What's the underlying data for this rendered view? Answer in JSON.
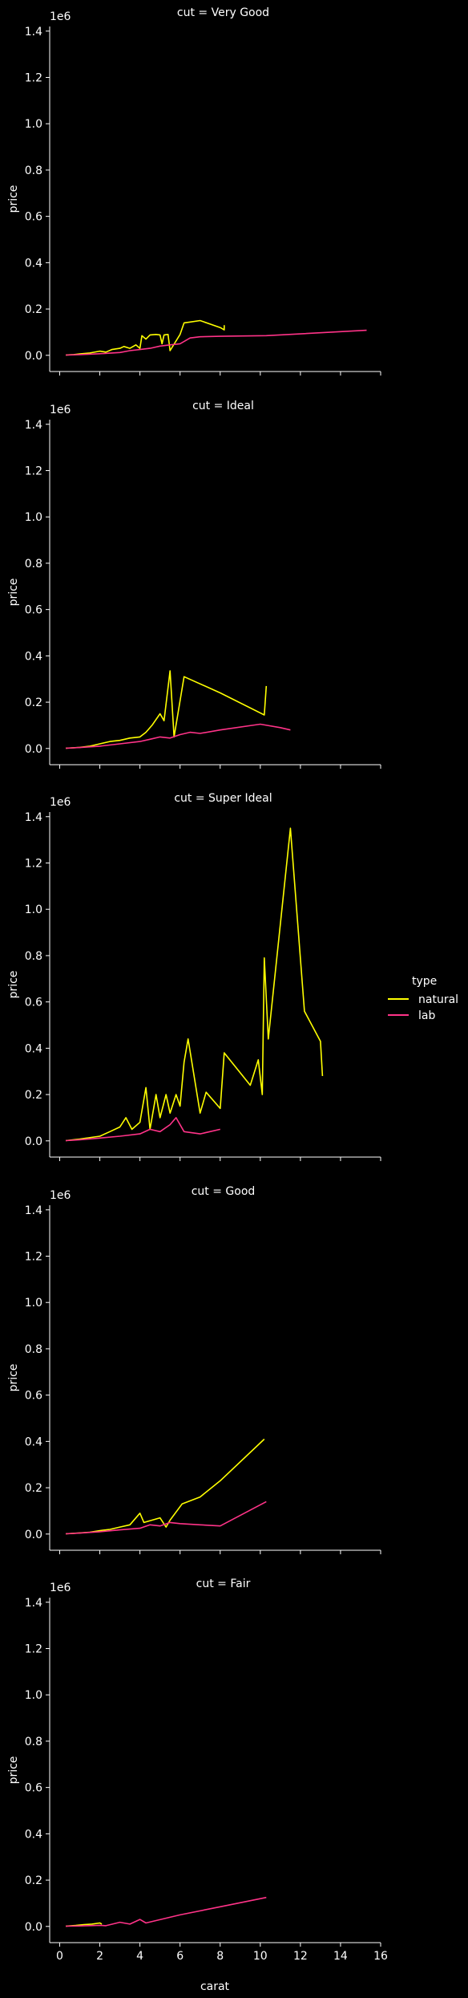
{
  "chart_data": {
    "type": "line",
    "facet_variable": "cut",
    "xlabel": "carat",
    "ylabel": "price",
    "y_offset_label": "1e6",
    "xlim": [
      -0.5,
      16
    ],
    "ylim": [
      -0.07,
      1.42
    ],
    "x_ticks": [
      0,
      2,
      4,
      6,
      8,
      10,
      12,
      14,
      16
    ],
    "y_ticks": [
      0.0,
      0.2,
      0.4,
      0.6,
      0.8,
      1.0,
      1.2,
      1.4
    ],
    "legend": {
      "title": "type",
      "placement": "right",
      "entries": [
        {
          "label": "natural",
          "color": "#ffff00"
        },
        {
          "label": "lab",
          "color": "#ff3388"
        }
      ]
    },
    "panels": [
      {
        "title": "cut = Very Good",
        "series": [
          {
            "name": "natural",
            "color": "#ffff00",
            "points": [
              [
                0.3,
                0.001
              ],
              [
                0.5,
                0.002
              ],
              [
                0.7,
                0.003
              ],
              [
                1.0,
                0.006
              ],
              [
                1.5,
                0.01
              ],
              [
                2.0,
                0.018
              ],
              [
                2.3,
                0.014
              ],
              [
                2.6,
                0.025
              ],
              [
                3.0,
                0.03
              ],
              [
                3.2,
                0.038
              ],
              [
                3.5,
                0.03
              ],
              [
                3.8,
                0.045
              ],
              [
                4.0,
                0.03
              ],
              [
                4.1,
                0.085
              ],
              [
                4.3,
                0.07
              ],
              [
                4.5,
                0.088
              ],
              [
                4.8,
                0.09
              ],
              [
                5.0,
                0.088
              ],
              [
                5.1,
                0.05
              ],
              [
                5.2,
                0.088
              ],
              [
                5.4,
                0.09
              ],
              [
                5.5,
                0.02
              ],
              [
                6.0,
                0.09
              ],
              [
                6.2,
                0.14
              ],
              [
                7.0,
                0.15
              ],
              [
                8.0,
                0.12
              ],
              [
                8.2,
                0.11
              ],
              [
                8.2,
                0.13
              ]
            ]
          },
          {
            "name": "lab",
            "color": "#ff3388",
            "points": [
              [
                0.3,
                0.001
              ],
              [
                1.0,
                0.003
              ],
              [
                2.0,
                0.007
              ],
              [
                3.0,
                0.012
              ],
              [
                3.5,
                0.02
              ],
              [
                4.0,
                0.025
              ],
              [
                4.5,
                0.03
              ],
              [
                5.0,
                0.04
              ],
              [
                5.5,
                0.045
              ],
              [
                6.0,
                0.05
              ],
              [
                6.5,
                0.075
              ],
              [
                7.0,
                0.08
              ],
              [
                8.0,
                0.082
              ],
              [
                10.3,
                0.085
              ],
              [
                15.3,
                0.108
              ]
            ]
          }
        ]
      },
      {
        "title": "cut = Ideal",
        "series": [
          {
            "name": "natural",
            "color": "#ffff00",
            "points": [
              [
                0.3,
                0.001
              ],
              [
                1.0,
                0.005
              ],
              [
                1.5,
                0.01
              ],
              [
                2.0,
                0.02
              ],
              [
                2.5,
                0.03
              ],
              [
                3.0,
                0.035
              ],
              [
                3.5,
                0.045
              ],
              [
                4.0,
                0.05
              ],
              [
                4.3,
                0.07
              ],
              [
                4.6,
                0.1
              ],
              [
                5.0,
                0.15
              ],
              [
                5.2,
                0.12
              ],
              [
                5.5,
                0.335
              ],
              [
                5.7,
                0.05
              ],
              [
                6.2,
                0.31
              ],
              [
                8.0,
                0.24
              ],
              [
                10.2,
                0.145
              ],
              [
                10.3,
                0.27
              ]
            ]
          },
          {
            "name": "lab",
            "color": "#ff3388",
            "points": [
              [
                0.3,
                0.001
              ],
              [
                1.0,
                0.004
              ],
              [
                2.0,
                0.01
              ],
              [
                3.0,
                0.02
              ],
              [
                4.0,
                0.03
              ],
              [
                4.5,
                0.04
              ],
              [
                5.0,
                0.05
              ],
              [
                5.5,
                0.045
              ],
              [
                6.0,
                0.06
              ],
              [
                6.5,
                0.07
              ],
              [
                7.0,
                0.065
              ],
              [
                8.0,
                0.08
              ],
              [
                10.0,
                0.105
              ],
              [
                11.0,
                0.09
              ],
              [
                11.5,
                0.08
              ]
            ]
          }
        ]
      },
      {
        "title": "cut = Super Ideal",
        "series": [
          {
            "name": "natural",
            "color": "#ffff00",
            "points": [
              [
                0.3,
                0.001
              ],
              [
                1.0,
                0.008
              ],
              [
                2.0,
                0.02
              ],
              [
                2.5,
                0.04
              ],
              [
                3.0,
                0.06
              ],
              [
                3.3,
                0.1
              ],
              [
                3.6,
                0.05
              ],
              [
                4.0,
                0.08
              ],
              [
                4.3,
                0.23
              ],
              [
                4.5,
                0.05
              ],
              [
                4.8,
                0.2
              ],
              [
                5.0,
                0.1
              ],
              [
                5.3,
                0.2
              ],
              [
                5.5,
                0.12
              ],
              [
                5.8,
                0.2
              ],
              [
                6.0,
                0.15
              ],
              [
                6.2,
                0.34
              ],
              [
                6.4,
                0.44
              ],
              [
                6.7,
                0.28
              ],
              [
                7.0,
                0.12
              ],
              [
                7.3,
                0.21
              ],
              [
                8.0,
                0.14
              ],
              [
                8.2,
                0.38
              ],
              [
                9.5,
                0.24
              ],
              [
                9.9,
                0.35
              ],
              [
                10.1,
                0.2
              ],
              [
                10.2,
                0.79
              ],
              [
                10.4,
                0.44
              ],
              [
                11.5,
                1.35
              ],
              [
                12.2,
                0.56
              ],
              [
                13.0,
                0.43
              ],
              [
                13.1,
                0.28
              ]
            ]
          },
          {
            "name": "lab",
            "color": "#ff3388",
            "points": [
              [
                0.3,
                0.001
              ],
              [
                1.0,
                0.005
              ],
              [
                2.0,
                0.012
              ],
              [
                3.0,
                0.02
              ],
              [
                4.0,
                0.03
              ],
              [
                4.5,
                0.05
              ],
              [
                5.0,
                0.04
              ],
              [
                5.5,
                0.07
              ],
              [
                5.8,
                0.1
              ],
              [
                6.2,
                0.04
              ],
              [
                7.0,
                0.03
              ],
              [
                8.0,
                0.05
              ]
            ]
          }
        ]
      },
      {
        "title": "cut = Good",
        "series": [
          {
            "name": "natural",
            "color": "#ffff00",
            "points": [
              [
                0.3,
                0.001
              ],
              [
                1.0,
                0.005
              ],
              [
                1.5,
                0.008
              ],
              [
                2.0,
                0.015
              ],
              [
                2.5,
                0.02
              ],
              [
                3.0,
                0.03
              ],
              [
                3.5,
                0.04
              ],
              [
                4.0,
                0.09
              ],
              [
                4.2,
                0.05
              ],
              [
                5.0,
                0.07
              ],
              [
                5.3,
                0.03
              ],
              [
                5.5,
                0.06
              ],
              [
                6.1,
                0.13
              ],
              [
                7.0,
                0.16
              ],
              [
                8.0,
                0.23
              ],
              [
                10.2,
                0.41
              ]
            ]
          },
          {
            "name": "lab",
            "color": "#ff3388",
            "points": [
              [
                0.3,
                0.001
              ],
              [
                1.0,
                0.004
              ],
              [
                2.0,
                0.01
              ],
              [
                3.0,
                0.018
              ],
              [
                4.0,
                0.025
              ],
              [
                4.5,
                0.04
              ],
              [
                5.0,
                0.035
              ],
              [
                5.5,
                0.05
              ],
              [
                6.0,
                0.045
              ],
              [
                7.0,
                0.04
              ],
              [
                8.0,
                0.035
              ],
              [
                10.3,
                0.14
              ]
            ]
          }
        ]
      },
      {
        "title": "cut = Fair",
        "series": [
          {
            "name": "natural",
            "color": "#ffff00",
            "points": [
              [
                0.3,
                0.001
              ],
              [
                0.8,
                0.004
              ],
              [
                1.2,
                0.008
              ],
              [
                1.6,
                0.01
              ],
              [
                2.0,
                0.015
              ],
              [
                2.1,
                0.01
              ]
            ]
          },
          {
            "name": "lab",
            "color": "#ff3388",
            "points": [
              [
                0.3,
                0.001
              ],
              [
                1.0,
                0.002
              ],
              [
                2.0,
                0.005
              ],
              [
                2.3,
                0.003
              ],
              [
                3.0,
                0.018
              ],
              [
                3.5,
                0.01
              ],
              [
                4.0,
                0.03
              ],
              [
                4.3,
                0.015
              ],
              [
                6.0,
                0.05
              ],
              [
                8.0,
                0.085
              ],
              [
                10.3,
                0.125
              ]
            ]
          }
        ]
      }
    ]
  }
}
